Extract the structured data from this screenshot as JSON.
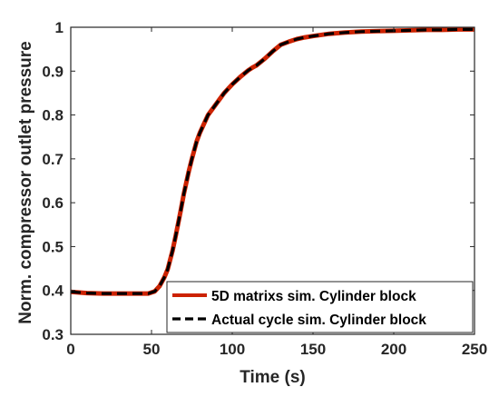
{
  "chart_data": {
    "type": "line",
    "xlabel": "Time (s)",
    "ylabel": "Norm. compressor outlet pressure",
    "xlim": [
      0,
      250
    ],
    "ylim": [
      0.3,
      1.0
    ],
    "xticks": [
      0,
      50,
      100,
      150,
      200,
      250
    ],
    "yticks": [
      0.3,
      0.4,
      0.5,
      0.6,
      0.7,
      0.8,
      0.9,
      1.0
    ],
    "xtick_labels": [
      "0",
      "50",
      "100",
      "150",
      "200",
      "250"
    ],
    "ytick_labels": [
      "0.3",
      "0.4",
      "0.5",
      "0.6",
      "0.7",
      "0.8",
      "0.9",
      "1"
    ],
    "grid": false,
    "legend_position": "bottom-right",
    "series": [
      {
        "name": "5D matrixs sim. Cylinder block",
        "color": "#cc2200",
        "style": "solid",
        "x": [
          0,
          10,
          20,
          30,
          40,
          48,
          52,
          55,
          58,
          60,
          63,
          65,
          68,
          70,
          73,
          75,
          78,
          80,
          85,
          90,
          95,
          100,
          105,
          110,
          113,
          115,
          118,
          120,
          125,
          130,
          135,
          140,
          145,
          150,
          160,
          170,
          180,
          190,
          200,
          210,
          220,
          230,
          240,
          250
        ],
        "values": [
          0.397,
          0.394,
          0.393,
          0.393,
          0.393,
          0.393,
          0.398,
          0.41,
          0.43,
          0.448,
          0.49,
          0.525,
          0.58,
          0.62,
          0.67,
          0.7,
          0.74,
          0.76,
          0.8,
          0.825,
          0.85,
          0.87,
          0.887,
          0.902,
          0.909,
          0.913,
          0.922,
          0.928,
          0.945,
          0.96,
          0.967,
          0.973,
          0.977,
          0.98,
          0.985,
          0.988,
          0.99,
          0.991,
          0.992,
          0.993,
          0.994,
          0.994,
          0.995,
          0.995
        ]
      },
      {
        "name": "Actual cycle sim. Cylinder block",
        "color": "#000000",
        "style": "dashed",
        "x": [
          0,
          10,
          20,
          30,
          40,
          48,
          52,
          55,
          58,
          60,
          63,
          65,
          68,
          70,
          73,
          75,
          78,
          80,
          85,
          90,
          95,
          100,
          105,
          110,
          113,
          115,
          118,
          120,
          125,
          130,
          135,
          140,
          145,
          150,
          160,
          170,
          180,
          190,
          200,
          210,
          220,
          230,
          240,
          250
        ],
        "values": [
          0.397,
          0.394,
          0.393,
          0.393,
          0.393,
          0.393,
          0.398,
          0.41,
          0.43,
          0.448,
          0.49,
          0.525,
          0.58,
          0.62,
          0.67,
          0.7,
          0.74,
          0.76,
          0.8,
          0.825,
          0.85,
          0.87,
          0.887,
          0.902,
          0.909,
          0.913,
          0.922,
          0.928,
          0.945,
          0.96,
          0.967,
          0.973,
          0.977,
          0.98,
          0.985,
          0.988,
          0.99,
          0.991,
          0.992,
          0.993,
          0.994,
          0.994,
          0.995,
          0.995
        ]
      }
    ]
  }
}
